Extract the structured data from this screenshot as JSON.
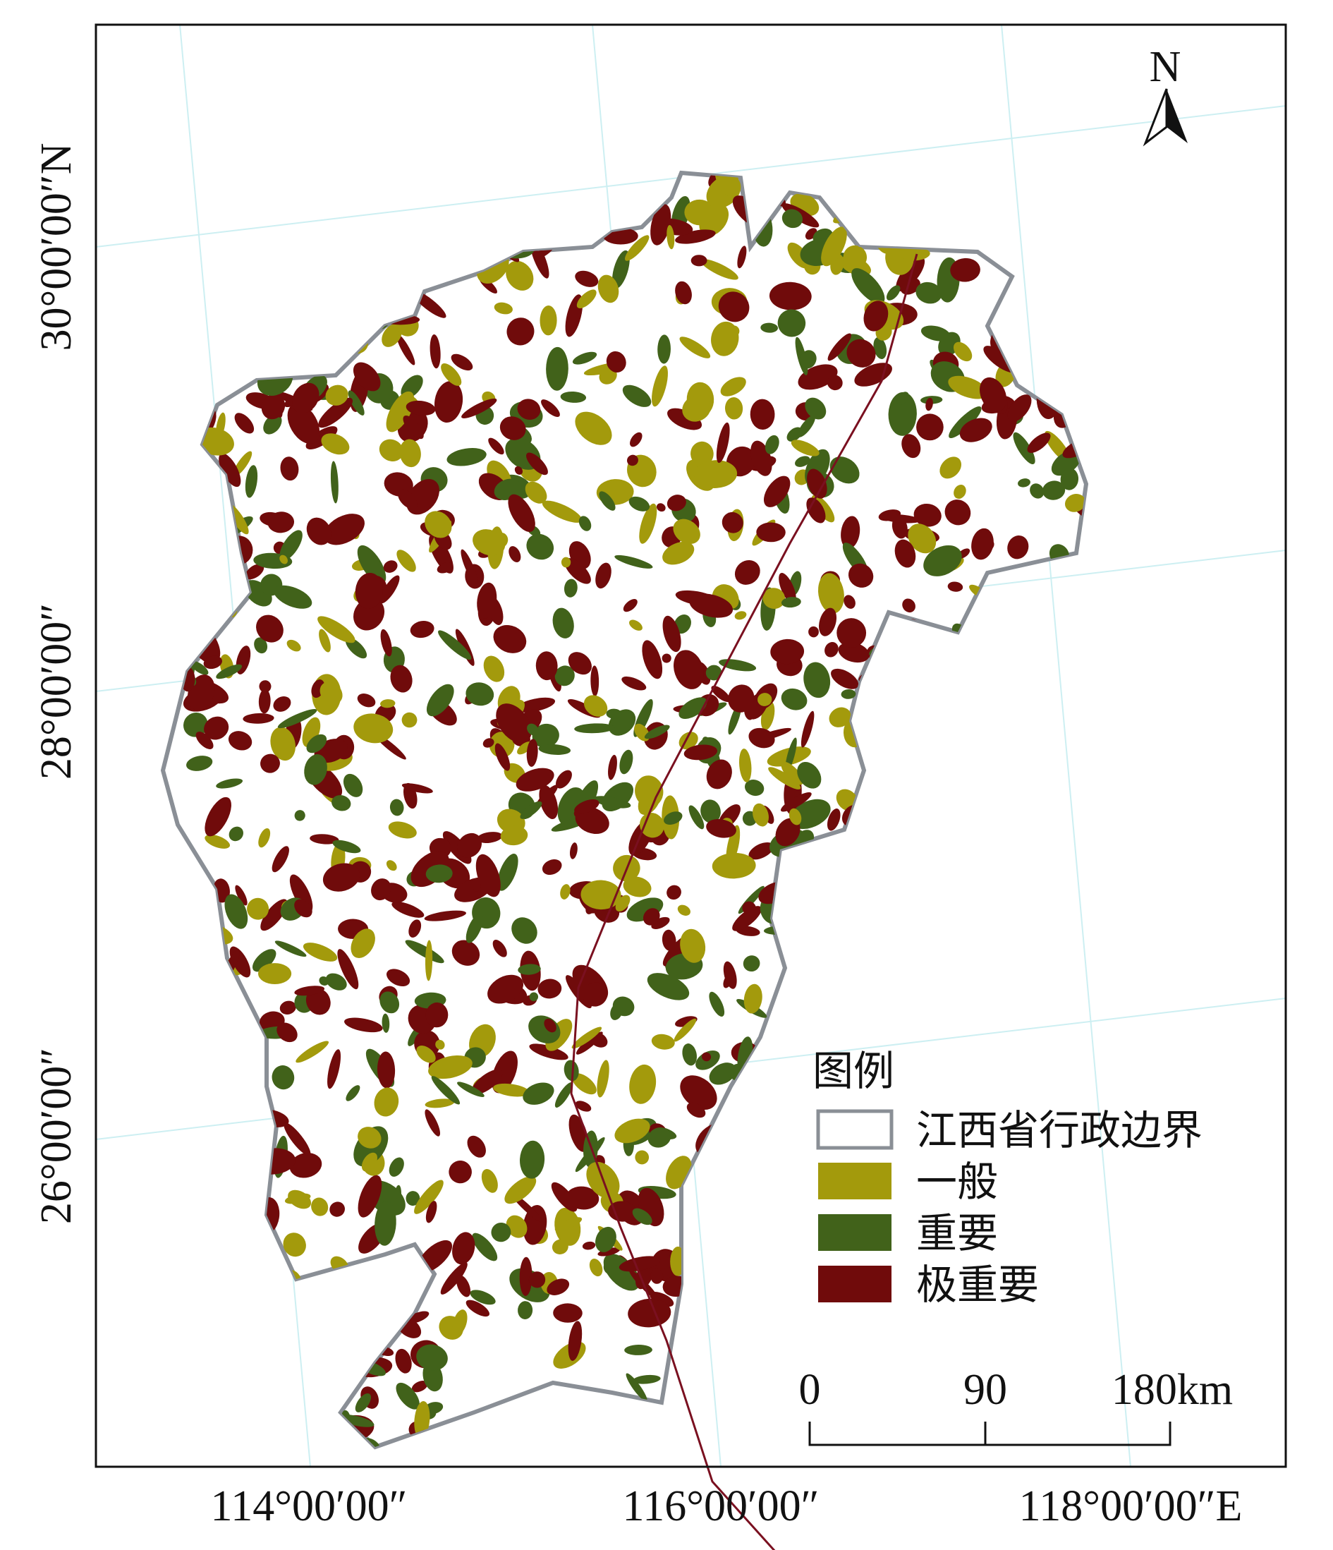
{
  "map": {
    "north": "N",
    "latitude_labels": [
      "30°00′00″N",
      "28°00′00″",
      "26°00′00″"
    ],
    "longitude_labels": [
      "114°00′00″",
      "116°00′00″",
      "118°00′00″E"
    ],
    "legend": {
      "title": "图例",
      "items": [
        {
          "label": "江西省行政边界",
          "color": "#ffffff"
        },
        {
          "label": "一般",
          "color": "#a39a0c"
        },
        {
          "label": "重要",
          "color": "#41621a"
        },
        {
          "label": "极重要",
          "color": "#700b0b"
        }
      ]
    },
    "scale_bar": {
      "labels": [
        "0",
        "90",
        "180km"
      ]
    }
  }
}
